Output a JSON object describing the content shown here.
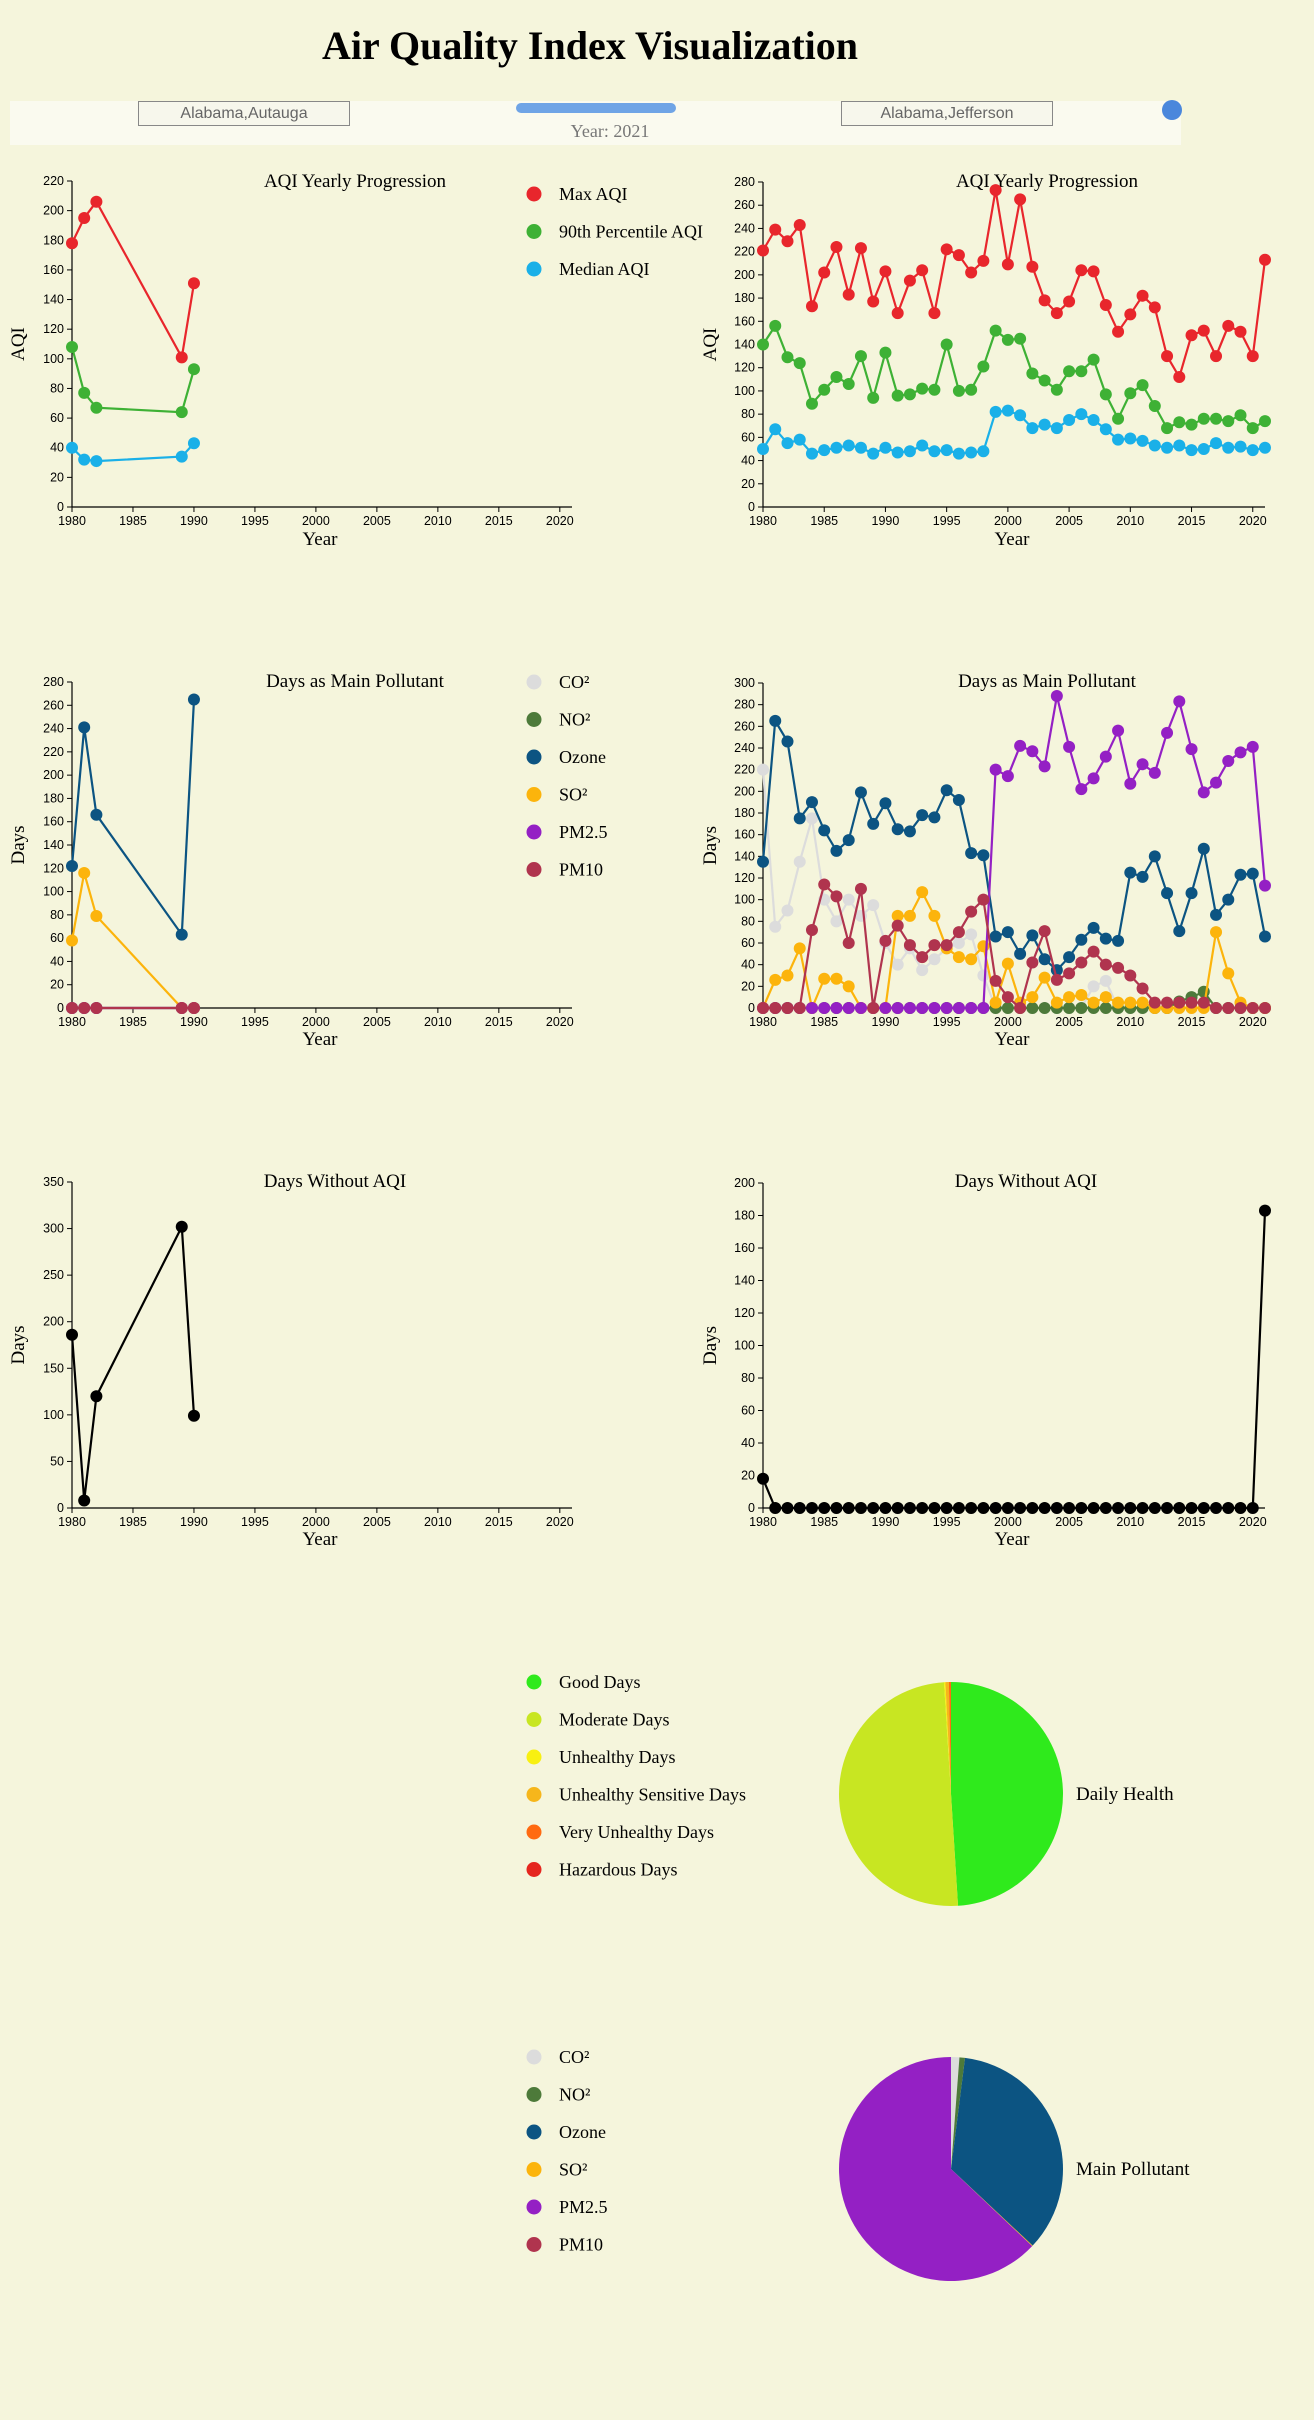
{
  "page": {
    "title": "Air Quality Index Visualization",
    "left_county": "Alabama,Autauga",
    "right_county": "Alabama,Jefferson",
    "year_label": "Year: 2021",
    "slider": {
      "min": 1980,
      "max": 2021,
      "value": 2021
    }
  },
  "legends": {
    "aqi": [
      {
        "label": "Max AQI",
        "color": "#e8262c"
      },
      {
        "label": "90th Percentile AQI",
        "color": "#3eb135"
      },
      {
        "label": "Median AQI",
        "color": "#1ab0e8"
      }
    ],
    "pollutant": [
      {
        "label": "CO²",
        "color": "#dcdcdc"
      },
      {
        "label": "NO²",
        "color": "#4d7a3a"
      },
      {
        "label": "Ozone",
        "color": "#0c5482"
      },
      {
        "label": "SO²",
        "color": "#fcb40c"
      },
      {
        "label": "PM2.5",
        "color": "#9420c4"
      },
      {
        "label": "PM10",
        "color": "#b0344e"
      }
    ],
    "health": [
      {
        "label": "Good Days",
        "color": "#2fea1c"
      },
      {
        "label": "Moderate Days",
        "color": "#c8e622"
      },
      {
        "label": "Unhealthy Days",
        "color": "#f8f011"
      },
      {
        "label": "Unhealthy Sensitive Days",
        "color": "#f6b61b"
      },
      {
        "label": "Very Unhealthy Days",
        "color": "#ff6a11"
      },
      {
        "label": "Hazardous Days",
        "color": "#e5261f"
      }
    ]
  },
  "chart_data": [
    {
      "type": "line",
      "title": "AQI Yearly Progression",
      "county": "Alabama,Autauga",
      "xlabel": "Year",
      "ylabel": "AQI",
      "xlim": [
        1980,
        2021
      ],
      "ylim": [
        0,
        220
      ],
      "y_step": 20,
      "legend": "right",
      "series": [
        {
          "name": "Max AQI",
          "x": [
            1980,
            1981,
            1982,
            1989,
            1990
          ],
          "values": [
            178,
            195,
            206,
            101,
            151
          ]
        },
        {
          "name": "90th Percentile AQI",
          "x": [
            1980,
            1981,
            1982,
            1989,
            1990
          ],
          "values": [
            108,
            77,
            67,
            64,
            93
          ]
        },
        {
          "name": "Median AQI",
          "x": [
            1980,
            1981,
            1982,
            1989,
            1990
          ],
          "values": [
            40,
            32,
            31,
            34,
            43
          ]
        }
      ]
    },
    {
      "type": "line",
      "title": "AQI Yearly Progression",
      "county": "Alabama,Jefferson",
      "xlabel": "Year",
      "ylabel": "AQI",
      "xlim": [
        1980,
        2021
      ],
      "ylim": [
        0,
        280
      ],
      "y_step": 20,
      "x": [
        1980,
        1981,
        1982,
        1983,
        1984,
        1985,
        1986,
        1987,
        1988,
        1989,
        1990,
        1991,
        1992,
        1993,
        1994,
        1995,
        1996,
        1997,
        1998,
        1999,
        2000,
        2001,
        2002,
        2003,
        2004,
        2005,
        2006,
        2007,
        2008,
        2009,
        2010,
        2011,
        2012,
        2013,
        2014,
        2015,
        2016,
        2017,
        2018,
        2019,
        2020,
        2021
      ],
      "series": [
        {
          "name": "Max AQI",
          "values": [
            221,
            239,
            229,
            243,
            173,
            202,
            224,
            183,
            223,
            177,
            203,
            167,
            195,
            204,
            167,
            222,
            217,
            202,
            212,
            273,
            209,
            265,
            207,
            178,
            167,
            177,
            204,
            203,
            174,
            151,
            166,
            182,
            172,
            130,
            112,
            148,
            152,
            130,
            156,
            151,
            130,
            213
          ]
        },
        {
          "name": "90th Percentile AQI",
          "values": [
            140,
            156,
            129,
            124,
            89,
            101,
            112,
            106,
            130,
            94,
            133,
            96,
            97,
            102,
            101,
            140,
            100,
            101,
            121,
            152,
            144,
            145,
            115,
            109,
            101,
            117,
            117,
            127,
            97,
            76,
            98,
            105,
            87,
            68,
            73,
            71,
            76,
            76,
            74,
            79,
            68,
            74
          ]
        },
        {
          "name": "Median AQI",
          "values": [
            50,
            67,
            55,
            58,
            46,
            49,
            51,
            53,
            51,
            46,
            51,
            47,
            48,
            53,
            48,
            49,
            46,
            47,
            48,
            82,
            83,
            79,
            68,
            71,
            68,
            75,
            80,
            75,
            67,
            58,
            59,
            57,
            53,
            51,
            53,
            49,
            50,
            55,
            51,
            52,
            49,
            51
          ]
        }
      ]
    },
    {
      "type": "line",
      "title": "Days as Main Pollutant",
      "county": "Alabama,Autauga",
      "xlabel": "Year",
      "ylabel": "Days",
      "xlim": [
        1980,
        2021
      ],
      "ylim": [
        0,
        280
      ],
      "y_step": 20,
      "legend": "right",
      "series": [
        {
          "name": "CO²",
          "x": [
            1980,
            1981,
            1982,
            1989,
            1990
          ],
          "values": [
            0,
            0,
            0,
            0,
            0
          ]
        },
        {
          "name": "NO²",
          "x": [
            1980,
            1981,
            1982,
            1989,
            1990
          ],
          "values": [
            0,
            0,
            0,
            0,
            0
          ]
        },
        {
          "name": "Ozone",
          "x": [
            1980,
            1981,
            1982,
            1989,
            1990
          ],
          "values": [
            122,
            241,
            166,
            63,
            265
          ]
        },
        {
          "name": "SO²",
          "x": [
            1980,
            1981,
            1982,
            1989,
            1990
          ],
          "values": [
            58,
            116,
            79,
            0,
            0
          ]
        },
        {
          "name": "PM2.5",
          "x": [
            1980,
            1981,
            1982,
            1989,
            1990
          ],
          "values": [
            0,
            0,
            0,
            0,
            0
          ]
        },
        {
          "name": "PM10",
          "x": [
            1980,
            1981,
            1982,
            1989,
            1990
          ],
          "values": [
            0,
            0,
            0,
            0,
            0
          ]
        }
      ]
    },
    {
      "type": "line",
      "title": "Days as Main Pollutant",
      "county": "Alabama,Jefferson",
      "xlabel": "Year",
      "ylabel": "Days",
      "xlim": [
        1980,
        2021
      ],
      "ylim": [
        0,
        300
      ],
      "y_step": 20,
      "x": [
        1980,
        1981,
        1982,
        1983,
        1984,
        1985,
        1986,
        1987,
        1988,
        1989,
        1990,
        1991,
        1992,
        1993,
        1994,
        1995,
        1996,
        1997,
        1998,
        1999,
        2000,
        2001,
        2002,
        2003,
        2004,
        2005,
        2006,
        2007,
        2008,
        2009,
        2010,
        2011,
        2012,
        2013,
        2014,
        2015,
        2016,
        2017,
        2018,
        2019,
        2020,
        2021
      ],
      "series": [
        {
          "name": "CO²",
          "values": [
            220,
            75,
            90,
            135,
            175,
            100,
            80,
            100,
            85,
            95,
            60,
            40,
            55,
            35,
            45,
            55,
            60,
            68,
            30,
            0,
            0,
            0,
            0,
            0,
            0,
            0,
            0,
            20,
            25,
            0,
            0,
            0,
            0,
            0,
            0,
            0,
            0,
            0,
            0,
            0,
            0,
            0
          ]
        },
        {
          "name": "NO²",
          "values": [
            0,
            0,
            0,
            0,
            0,
            0,
            0,
            0,
            0,
            0,
            0,
            0,
            0,
            0,
            0,
            0,
            0,
            0,
            0,
            0,
            0,
            0,
            0,
            0,
            0,
            0,
            0,
            0,
            0,
            0,
            0,
            0,
            0,
            0,
            6,
            10,
            15,
            0,
            0,
            0,
            0,
            0
          ]
        },
        {
          "name": "Ozone",
          "values": [
            135,
            265,
            246,
            175,
            190,
            164,
            145,
            155,
            199,
            170,
            189,
            165,
            163,
            178,
            176,
            201,
            192,
            143,
            141,
            66,
            70,
            50,
            67,
            45,
            35,
            47,
            63,
            74,
            64,
            62,
            125,
            121,
            140,
            106,
            71,
            106,
            147,
            86,
            100,
            123,
            124,
            66
          ]
        },
        {
          "name": "SO²",
          "values": [
            0,
            26,
            30,
            55,
            0,
            27,
            27,
            20,
            0,
            0,
            0,
            85,
            85,
            107,
            85,
            55,
            47,
            45,
            57,
            5,
            41,
            5,
            10,
            28,
            5,
            10,
            12,
            5,
            10,
            5,
            5,
            5,
            0,
            0,
            0,
            0,
            0,
            70,
            32,
            5,
            0,
            0
          ]
        },
        {
          "name": "PM2.5",
          "values": [
            0,
            0,
            0,
            0,
            0,
            0,
            0,
            0,
            0,
            0,
            0,
            0,
            0,
            0,
            0,
            0,
            0,
            0,
            0,
            220,
            214,
            242,
            237,
            223,
            288,
            241,
            202,
            212,
            232,
            256,
            207,
            225,
            217,
            254,
            283,
            239,
            199,
            208,
            228,
            236,
            241,
            113
          ]
        },
        {
          "name": "PM10",
          "values": [
            0,
            0,
            0,
            0,
            72,
            114,
            103,
            60,
            110,
            0,
            62,
            76,
            58,
            47,
            58,
            58,
            70,
            89,
            100,
            25,
            10,
            0,
            42,
            71,
            26,
            32,
            42,
            52,
            40,
            37,
            30,
            18,
            5,
            5,
            5,
            5,
            5,
            0,
            0,
            0,
            0,
            0
          ]
        }
      ]
    },
    {
      "type": "line",
      "title": "Days Without AQI",
      "county": "Alabama,Autauga",
      "xlabel": "Year",
      "ylabel": "Days",
      "xlim": [
        1980,
        2021
      ],
      "ylim": [
        0,
        350
      ],
      "y_step": 50,
      "series": [
        {
          "x": [
            1980,
            1981,
            1982,
            1989,
            1990
          ],
          "values": [
            186,
            8,
            120,
            302,
            99
          ]
        }
      ]
    },
    {
      "type": "line",
      "title": "Days Without AQI",
      "county": "Alabama,Jefferson",
      "xlabel": "Year",
      "ylabel": "Days",
      "xlim": [
        1980,
        2021
      ],
      "ylim": [
        0,
        200
      ],
      "y_step": 20,
      "x": [
        1980,
        1981,
        1982,
        1983,
        1984,
        1985,
        1986,
        1987,
        1988,
        1989,
        1990,
        1991,
        1992,
        1993,
        1994,
        1995,
        1996,
        1997,
        1998,
        1999,
        2000,
        2001,
        2002,
        2003,
        2004,
        2005,
        2006,
        2007,
        2008,
        2009,
        2010,
        2011,
        2012,
        2013,
        2014,
        2015,
        2016,
        2017,
        2018,
        2019,
        2020,
        2021
      ],
      "series": [
        {
          "values": [
            18,
            0,
            0,
            0,
            0,
            0,
            0,
            0,
            0,
            0,
            0,
            0,
            0,
            0,
            0,
            0,
            0,
            0,
            0,
            0,
            0,
            0,
            0,
            0,
            0,
            0,
            0,
            0,
            0,
            0,
            0,
            0,
            0,
            0,
            0,
            0,
            0,
            0,
            0,
            0,
            0,
            183
          ]
        }
      ]
    },
    {
      "type": "pie",
      "label": "Daily Health",
      "categories": [
        "Good Days",
        "Moderate Days",
        "Unhealthy Days",
        "Unhealthy Sensitive Days",
        "Very Unhealthy Days",
        "Hazardous Days"
      ],
      "values": [
        49,
        50,
        0.2,
        0.5,
        0.3,
        0
      ]
    },
    {
      "type": "pie",
      "label": "Main Pollutant",
      "categories": [
        "CO²",
        "NO²",
        "Ozone",
        "SO²",
        "PM2.5",
        "PM10"
      ],
      "values": [
        1.2,
        0.8,
        35,
        0.1,
        62.9,
        0
      ]
    }
  ]
}
